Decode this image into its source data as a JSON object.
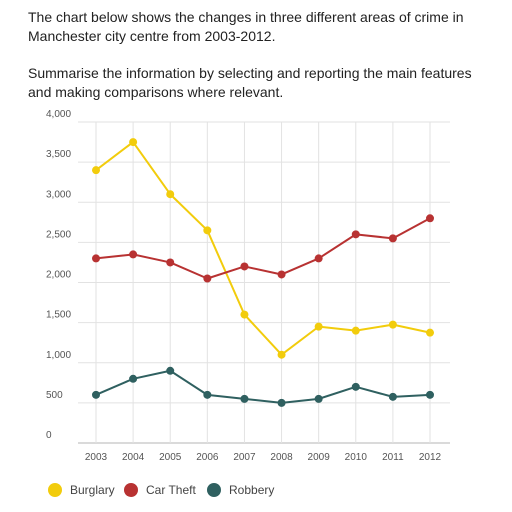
{
  "prompt": {
    "line1": "The chart below shows the changes in three different areas of crime in Manchester city centre from 2003-2012.",
    "line2": "Summarise the information by selecting and reporting the main features and making comparisons where relevant."
  },
  "chart_data": {
    "type": "line",
    "title": "",
    "xlabel": "",
    "ylabel": "",
    "x": [
      "2003",
      "2004",
      "2005",
      "2006",
      "2007",
      "2008",
      "2009",
      "2010",
      "2011",
      "2012"
    ],
    "ylim": [
      0,
      4000
    ],
    "yticks": [
      0,
      500,
      1000,
      1500,
      2000,
      2500,
      3000,
      3500,
      4000
    ],
    "ytick_labels": [
      "0",
      "500",
      "1,000",
      "1,500",
      "2,000",
      "2,500",
      "3,000",
      "3,500",
      "4,000"
    ],
    "grid": "vertical and horizontal",
    "legend_position": "bottom",
    "series": [
      {
        "name": "Burglary",
        "color": "#f2cc0c",
        "values": [
          3400,
          3750,
          3100,
          2650,
          1600,
          1100,
          1450,
          1400,
          1475,
          1375
        ]
      },
      {
        "name": "Car Theft",
        "color": "#b83232",
        "values": [
          2300,
          2350,
          2250,
          2050,
          2200,
          2100,
          2300,
          2600,
          2550,
          2800
        ]
      },
      {
        "name": "Robbery",
        "color": "#2f6060",
        "values": [
          600,
          800,
          900,
          600,
          550,
          500,
          550,
          700,
          575,
          600
        ]
      }
    ]
  }
}
